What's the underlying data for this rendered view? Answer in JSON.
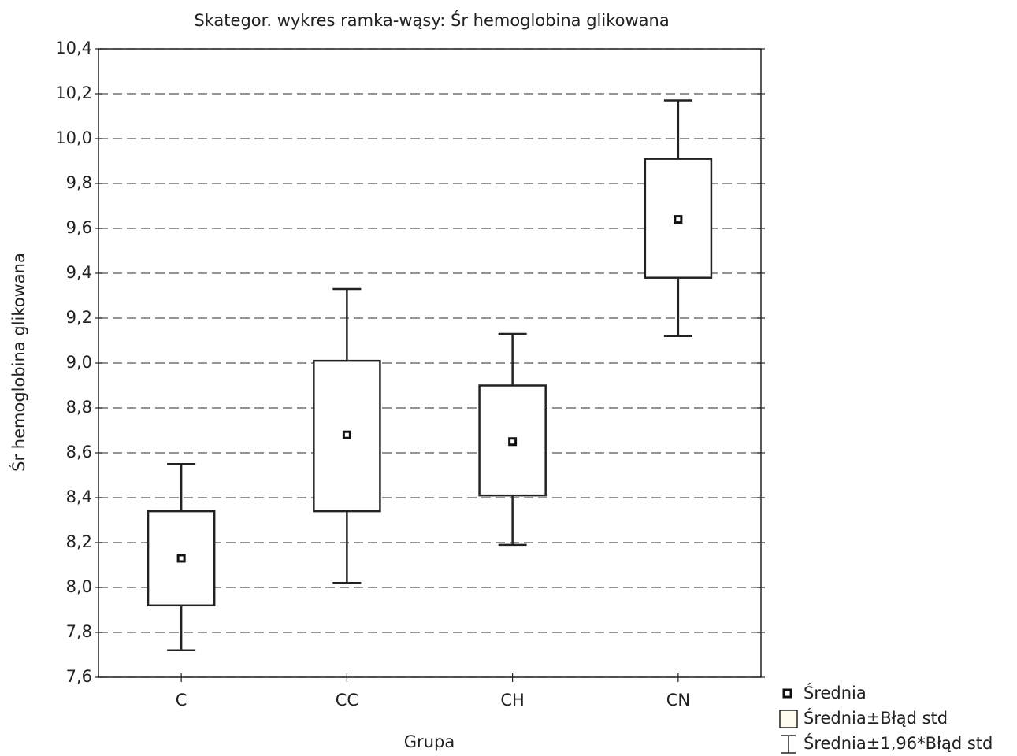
{
  "chart_data": {
    "type": "boxplot",
    "title": "Skategor. wykres ramka-wąsy: Śr hemoglobina glikowana",
    "x_label": "Grupa",
    "y_label": "Śr hemoglobina glikowana",
    "categories": [
      "C",
      "CC",
      "CH",
      "CN"
    ],
    "mean": [
      8.13,
      8.68,
      8.65,
      9.64
    ],
    "box_low": [
      7.92,
      8.34,
      8.41,
      9.38
    ],
    "box_high": [
      8.34,
      9.01,
      8.9,
      9.91
    ],
    "whisker_low": [
      7.72,
      8.02,
      8.19,
      9.12
    ],
    "whisker_high": [
      8.55,
      9.33,
      9.13,
      10.17
    ],
    "legend": [
      "Średnia",
      "Średnia±Błąd std",
      "Średnia±1,96*Błąd std"
    ],
    "ylim": [
      7.6,
      10.4
    ],
    "yticks": [
      {
        "value": 7.6,
        "label": "7,6"
      },
      {
        "value": 7.8,
        "label": "7,8"
      },
      {
        "value": 8.0,
        "label": "8,0"
      },
      {
        "value": 8.2,
        "label": "8,2"
      },
      {
        "value": 8.4,
        "label": "8,4"
      },
      {
        "value": 8.6,
        "label": "8,6"
      },
      {
        "value": 8.8,
        "label": "8,8"
      },
      {
        "value": 9.0,
        "label": "9,0"
      },
      {
        "value": 9.2,
        "label": "9,2"
      },
      {
        "value": 9.4,
        "label": "9,4"
      },
      {
        "value": 9.6,
        "label": "9,6"
      },
      {
        "value": 9.8,
        "label": "9,8"
      },
      {
        "value": 10.0,
        "label": "10,0"
      },
      {
        "value": 10.2,
        "label": "10,2"
      },
      {
        "value": 10.4,
        "label": "10,4"
      }
    ],
    "grid": true
  }
}
